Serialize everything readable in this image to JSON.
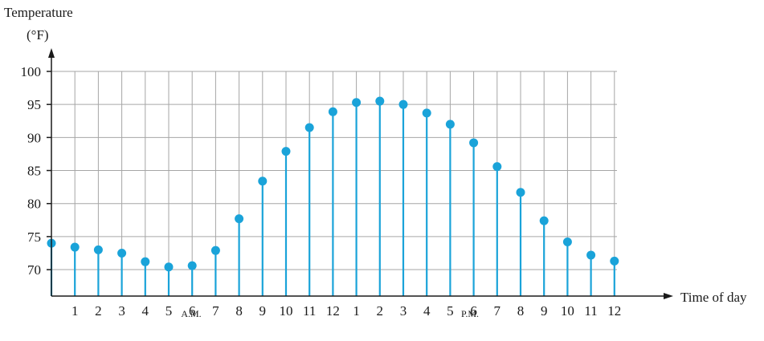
{
  "chart_data": {
    "type": "stem",
    "ylabel_line1": "Temperature",
    "ylabel_line2": "(°F)",
    "xlabel": "Time of day",
    "y_ticks": [
      70,
      75,
      80,
      85,
      90,
      95,
      100
    ],
    "ylim": [
      66,
      100
    ],
    "x_tick_labels": [
      "1",
      "2",
      "3",
      "4",
      "5",
      "6",
      "7",
      "8",
      "9",
      "10",
      "11",
      "12",
      "1",
      "2",
      "3",
      "4",
      "5",
      "6",
      "7",
      "8",
      "9",
      "10",
      "11",
      "12"
    ],
    "period_labels": [
      "A.M.",
      "P.M."
    ],
    "grid": true,
    "series": [
      {
        "x": [
          0,
          1,
          2,
          3,
          4,
          5,
          6,
          7,
          8,
          9,
          10,
          11,
          12,
          13,
          14,
          15,
          16,
          17,
          18,
          19,
          20,
          21,
          22,
          23,
          24
        ],
        "values": [
          74.0,
          73.4,
          73.0,
          72.5,
          71.2,
          70.4,
          70.6,
          72.9,
          77.7,
          83.4,
          87.9,
          91.5,
          93.9,
          95.3,
          95.5,
          95.0,
          93.7,
          92.0,
          89.2,
          85.6,
          81.7,
          77.4,
          74.2,
          72.2,
          71.3
        ]
      }
    ],
    "colors": {
      "stem": "#1aa3d9",
      "grid": "#a6a6a6",
      "axis": "#1a1a1a"
    }
  }
}
